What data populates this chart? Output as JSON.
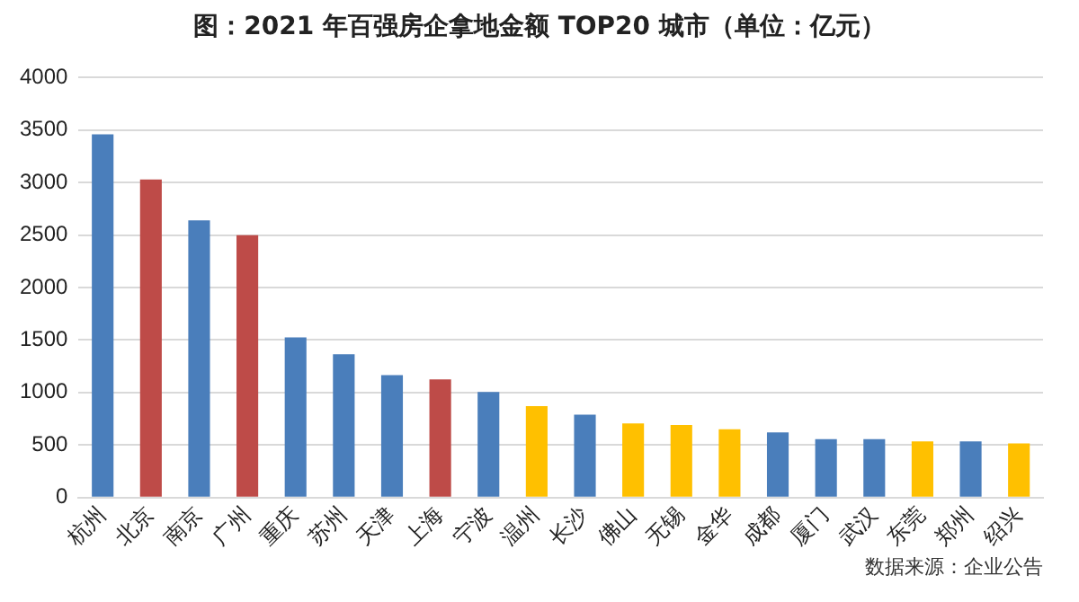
{
  "chart_data": {
    "type": "bar",
    "title": "图：2021 年百强房企拿地金额 TOP20 城市（单位：亿元）",
    "categories": [
      "杭州",
      "北京",
      "南京",
      "广州",
      "重庆",
      "苏州",
      "天津",
      "上海",
      "宁波",
      "温州",
      "长沙",
      "佛山",
      "无锡",
      "金华",
      "成都",
      "厦门",
      "武汉",
      "东莞",
      "郑州",
      "绍兴"
    ],
    "values": [
      3460,
      3030,
      2640,
      2500,
      1525,
      1365,
      1165,
      1125,
      1005,
      870,
      790,
      705,
      690,
      650,
      620,
      555,
      555,
      535,
      535,
      515
    ],
    "colors": [
      "#4a7ebb",
      "#be4b48",
      "#4a7ebb",
      "#be4b48",
      "#4a7ebb",
      "#4a7ebb",
      "#4a7ebb",
      "#be4b48",
      "#4a7ebb",
      "#ffc000",
      "#4a7ebb",
      "#ffc000",
      "#ffc000",
      "#ffc000",
      "#4a7ebb",
      "#4a7ebb",
      "#4a7ebb",
      "#ffc000",
      "#4a7ebb",
      "#ffc000"
    ],
    "ylim": [
      0,
      4000
    ],
    "yticks": [
      0,
      500,
      1000,
      1500,
      2000,
      2500,
      3000,
      3500,
      4000
    ],
    "grid": "y",
    "legend": false,
    "annotations": [
      "数据来源：企业公告"
    ]
  }
}
